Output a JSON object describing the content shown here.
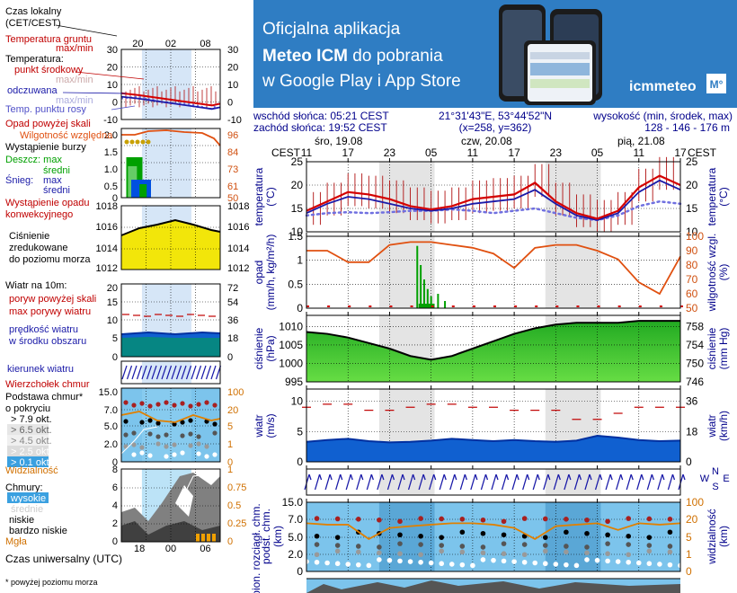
{
  "banner": {
    "line1": "Oficjalna aplikacja",
    "line2a": "Meteo ICM",
    "line2b": " do pobrania",
    "line3": "w Google Play i App Store",
    "logo_text": "icmmeteo",
    "logo_badge": "M°"
  },
  "header": {
    "sunrise": "wschód słońca: 05:21 CEST",
    "sunset": "zachód słońca: 19:52 CEST",
    "coords": "21°31'43\"E, 53°44'52\"N",
    "grid": "(x=258, y=362)",
    "alt_label": "wysokość (min, środek, max)",
    "alt_value": "128 - 146 - 176 m"
  },
  "time_axis": {
    "tz_left": "CEST",
    "tz_right": "CEST",
    "days": [
      "śro, 19.08",
      "czw, 20.08",
      "pią, 21.08"
    ],
    "hours": [
      "11",
      "17",
      "23",
      "05",
      "11",
      "17",
      "23",
      "05",
      "11",
      "17"
    ]
  },
  "legend": {
    "local_time": "Czas lokalny\n(CET/CEST)",
    "legend_hours": [
      "20",
      "02",
      "08"
    ],
    "soil_temp": "Temperatura gruntu",
    "maxmin": "max/min",
    "temperature": "Temperatura:",
    "mid_point": "punkt środkowy",
    "maxmin2": "max/min",
    "felt": "odczuwana",
    "maxmin3": "max/min",
    "dew": "Temp. punktu rosy",
    "temp_ticks_l": [
      "30",
      "20",
      "10",
      "0",
      "-10"
    ],
    "temp_ticks_r": [
      "30",
      "20",
      "10",
      "0",
      "-10"
    ],
    "precip_over": "Opad powyżej skali",
    "humidity": "Wilgotność względna",
    "storm": "Wystąpienie burzy",
    "rain": "Deszcz: max",
    "rain_mid": "średni",
    "snow": "Śnieg:",
    "snow_max": "max",
    "snow_mid": "średni",
    "conv": "Wystąpienie opadu\nkonwekcyjnego",
    "precip_ticks_l": [
      "2.0",
      "1.5",
      "1.0",
      "0.5",
      "0"
    ],
    "precip_ticks_r": [
      "96",
      "84",
      "73",
      "61",
      "50"
    ],
    "pressure": "Ciśnienie\nzredukowane\ndo poziomu morza",
    "press_ticks": [
      "1018",
      "1016",
      "1014",
      "1012"
    ],
    "wind": "Wiatr na 10m:",
    "gust_over": "poryw powyżej skali",
    "gust_max": "max porywy wiatru",
    "wind_avg": "prędkość wiatru\nw środku obszaru",
    "wind_ticks_l": [
      "20",
      "15",
      "10",
      "5",
      "0"
    ],
    "wind_ticks_r": [
      "72",
      "54",
      "36",
      "18",
      "0"
    ],
    "wind_dir": "kierunek wiatru",
    "cloud_top": "Wierzchołek chmur",
    "cloud_base": "Podstawa chmur*\no pokryciu",
    "okt": [
      "> 7.9 okt.",
      "> 6.5 okt.",
      "> 4.5 okt.",
      "> 2.5 okt.",
      "> 0.1 okt."
    ],
    "visibility": "Widzialność",
    "cloud_ticks_l": [
      "15.0",
      "7.0",
      "5.0",
      "2.0",
      "0"
    ],
    "cloud_ticks_r": [
      "100",
      "20",
      "5",
      "1",
      "0"
    ],
    "clouds": "Chmury:",
    "high": "wysokie",
    "mid": "średnie",
    "low": "niskie",
    "vlow": "bardzo niskie",
    "fog": "Mgła",
    "clouds_ticks_l": [
      "8",
      "6",
      "4",
      "2",
      "0"
    ],
    "clouds_ticks_r": [
      "1",
      "0.75",
      "0.5",
      "0.25",
      "0"
    ],
    "utc_ticks": [
      "18",
      "00",
      "06"
    ],
    "utc": "Czas uniwersalny (UTC)",
    "footnote": "* powyżej poziomu morza"
  },
  "panels": {
    "temp_l": "temperatura",
    "temp_lu": "(°C)",
    "temp_r": "temperatura",
    "temp_ru": "(°C)",
    "precip_l": "opad",
    "precip_lu": "(mm/h, kg/m²/h)",
    "precip_r": "wilgotność wzgl.",
    "precip_ru": "(%)",
    "press_l": "ciśnienie",
    "press_lu": "(hPa)",
    "press_r": "ciśnienie",
    "press_ru": "(mm Hg)",
    "wind_l": "wiatr",
    "wind_lu": "(m/s)",
    "wind_r": "wiatr",
    "wind_ru": "(km/h)",
    "cloud_l": "podst. chm.",
    "cloud_lu": "(km)",
    "cloud_r": "widzialność",
    "cloud_ru": "(km)",
    "bottom_l": "pion. rozciągł. chm.",
    "compass": [
      "N",
      "W",
      "E",
      "S"
    ]
  },
  "chart_data": [
    {
      "type": "line",
      "title": "temperatura",
      "ylabel": "(°C)",
      "ylim": [
        10,
        25
      ],
      "ylim_right": [
        10,
        25
      ],
      "yticks": [
        10,
        15,
        20,
        25
      ],
      "x": [
        0,
        3,
        6,
        9,
        12,
        15,
        18,
        21,
        24,
        27,
        30,
        33,
        36,
        39,
        42,
        45,
        48,
        51,
        54
      ],
      "series": [
        {
          "name": "punkt środkowy",
          "color": "#d40000",
          "values": [
            14.5,
            16.5,
            18.5,
            18.0,
            17.0,
            15.5,
            14.8,
            15.5,
            17.0,
            17.5,
            18.0,
            20.5,
            16.5,
            14.0,
            12.8,
            14.5,
            19.5,
            22.0,
            20.0
          ]
        },
        {
          "name": "odczuwana",
          "color": "#1a1aa8",
          "values": [
            14.0,
            16.0,
            17.5,
            17.0,
            16.0,
            15.0,
            14.5,
            15.0,
            16.0,
            16.5,
            17.0,
            19.0,
            16.0,
            13.5,
            12.5,
            14.0,
            18.5,
            21.0,
            19.0
          ]
        },
        {
          "name": "Temp. punktu rosy",
          "color": "#7070e0",
          "values": [
            13.5,
            14.0,
            14.2,
            14.0,
            14.2,
            14.5,
            14.5,
            14.8,
            14.5,
            14.0,
            14.5,
            15.0,
            14.0,
            13.0,
            12.5,
            13.5,
            15.5,
            16.5,
            16.0
          ]
        }
      ],
      "yticks_right": [
        10,
        15,
        20,
        25
      ]
    },
    {
      "type": "line",
      "title": "opad / wilgotność wzgl.",
      "ylabel": "(mm/h, kg/m²/h)",
      "ylim": [
        0,
        1.5
      ],
      "yticks": [
        0,
        0.5,
        1.0,
        1.5
      ],
      "yticks_right": [
        50,
        60,
        70,
        80,
        90,
        100
      ],
      "x": [
        0,
        3,
        6,
        9,
        12,
        15,
        18,
        21,
        24,
        27,
        30,
        33,
        36,
        39,
        42,
        45,
        48,
        51,
        54
      ],
      "series": [
        {
          "name": "Wilgotność względna",
          "color": "#e05010",
          "values": [
            90,
            90,
            82,
            82,
            94,
            96,
            96,
            94,
            92,
            88,
            78,
            92,
            94,
            94,
            90,
            84,
            68,
            60,
            86
          ]
        },
        {
          "name": "Deszcz",
          "color": "#00a000",
          "values": [
            0,
            0,
            0.0,
            1.3,
            0.6,
            0,
            0,
            0,
            0,
            0,
            0,
            0,
            0,
            0,
            0,
            0,
            0,
            0,
            0
          ]
        }
      ]
    },
    {
      "type": "area",
      "title": "ciśnienie",
      "ylabel": "(hPa)",
      "ylim": [
        995,
        1013
      ],
      "yticks": [
        995,
        1000,
        1005,
        1010
      ],
      "yticks_right": [
        746,
        750,
        754,
        758
      ],
      "x": [
        0,
        3,
        6,
        9,
        12,
        15,
        18,
        21,
        24,
        27,
        30,
        33,
        36,
        39,
        42,
        45,
        48,
        51,
        54
      ],
      "series": [
        {
          "name": "ciśnienie",
          "color": "#000000",
          "values": [
            1008.5,
            1008,
            1007,
            1005.5,
            1004,
            1002,
            1001,
            1002,
            1004,
            1006,
            1008,
            1009.5,
            1010.5,
            1011,
            1011,
            1011,
            1011.5,
            1011.5,
            1011.5
          ]
        }
      ]
    },
    {
      "type": "line",
      "title": "wiatr",
      "ylabel": "(m/s)",
      "ylim": [
        0,
        12
      ],
      "yticks": [
        0,
        5,
        10
      ],
      "yticks_right": [
        0,
        18,
        36
      ],
      "x": [
        0,
        3,
        6,
        9,
        12,
        15,
        18,
        21,
        24,
        27,
        30,
        33,
        36,
        39,
        42,
        45,
        48,
        51,
        54
      ],
      "series": [
        {
          "name": "prędkość wiatru",
          "color": "#0040c0",
          "values": [
            3.3,
            3.6,
            3.8,
            3.4,
            3.2,
            3.3,
            3.5,
            3.8,
            3.6,
            3.4,
            3.6,
            3.4,
            3.3,
            3.5,
            4.3,
            4.0,
            3.6,
            3.4,
            3.5
          ]
        },
        {
          "name": "max porywy wiatru",
          "color": "#c00000",
          "values": [
            9.0,
            9.5,
            9.5,
            8.5,
            8.5,
            9.0,
            9.5,
            9.5,
            9.0,
            9.0,
            8.5,
            8.5,
            8.5,
            7.0,
            7.0,
            8.0,
            9.0,
            9.0,
            9.0
          ]
        }
      ]
    },
    {
      "type": "line",
      "title": "widzialność",
      "ylabel": "(km)",
      "yticks": [
        0,
        2.0,
        5.0,
        7.0,
        15.0
      ],
      "yticks_right": [
        0,
        1,
        5,
        20,
        100
      ],
      "x": [
        0,
        3,
        6,
        9,
        12,
        15,
        18,
        21,
        24,
        27,
        30,
        33,
        36,
        39,
        42,
        45,
        48,
        51,
        54
      ],
      "series": [
        {
          "name": "Widzialność",
          "color": "#e08000",
          "values": [
            20,
            18,
            18,
            6,
            14,
            16,
            18,
            20,
            20,
            18,
            14,
            6,
            16,
            18,
            20,
            12,
            20,
            18,
            20
          ]
        }
      ]
    }
  ]
}
